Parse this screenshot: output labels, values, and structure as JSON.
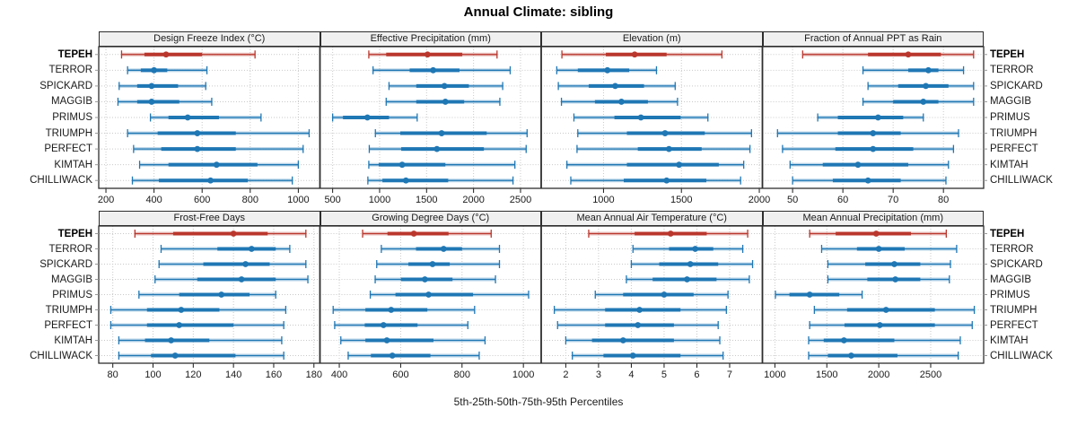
{
  "title": "Annual Climate: sibling",
  "caption": "5th-25th-50th-75th-95th Percentiles",
  "colors": {
    "highlight": "#ba372d",
    "normal": "#1f77b4",
    "grid": "#c9c9c9",
    "border": "#2e2e2e",
    "strip_bg": "#f0f0f0",
    "axis_text": "#1a1a1a",
    "outer_tick": "#999999"
  },
  "chart_data": {
    "type": "dot-interval",
    "percentile_labels": [
      "5th",
      "25th",
      "50th",
      "75th",
      "95th"
    ],
    "highlight_site": "TEPEH",
    "sites": [
      "TEPEH",
      "TERROR",
      "SPICKARD",
      "MAGGIB",
      "PRIMUS",
      "TRIUMPH",
      "PERFECT",
      "KIMTAH",
      "CHILLIWACK"
    ],
    "panels": [
      {
        "title": "Design Freeze Index (°C)",
        "xlim": [
          170,
          1090
        ],
        "ticks": [
          200,
          400,
          600,
          800,
          1000
        ],
        "series": [
          [
            265,
            360,
            450,
            600,
            820
          ],
          [
            290,
            345,
            400,
            455,
            620
          ],
          [
            255,
            330,
            390,
            500,
            615
          ],
          [
            250,
            330,
            390,
            505,
            640
          ],
          [
            385,
            460,
            540,
            670,
            845
          ],
          [
            290,
            415,
            580,
            740,
            1045
          ],
          [
            315,
            430,
            580,
            740,
            1020
          ],
          [
            340,
            460,
            660,
            830,
            1000
          ],
          [
            310,
            420,
            635,
            790,
            975
          ]
        ]
      },
      {
        "title": "Effective Precipitation (mm)",
        "xlim": [
          365,
          2720
        ],
        "ticks": [
          500,
          1000,
          1500,
          2000,
          2500
        ],
        "series": [
          [
            885,
            1070,
            1510,
            1880,
            2250
          ],
          [
            930,
            1320,
            1570,
            1850,
            2390
          ],
          [
            1100,
            1390,
            1690,
            1950,
            2310
          ],
          [
            1070,
            1390,
            1700,
            1900,
            2280
          ],
          [
            500,
            610,
            870,
            1100,
            1400
          ],
          [
            955,
            1220,
            1660,
            2140,
            2570
          ],
          [
            890,
            1230,
            1610,
            2110,
            2560
          ],
          [
            885,
            990,
            1240,
            1700,
            2440
          ],
          [
            875,
            1030,
            1280,
            1730,
            2420
          ]
        ]
      },
      {
        "title": "Elevation (m)",
        "xlim": [
          600,
          2020
        ],
        "ticks": [
          1000,
          1500,
          2000
        ],
        "series": [
          [
            733,
            1015,
            1200,
            1405,
            1760
          ],
          [
            700,
            835,
            1025,
            1165,
            1340
          ],
          [
            710,
            905,
            1075,
            1260,
            1460
          ],
          [
            730,
            945,
            1115,
            1285,
            1475
          ],
          [
            810,
            1070,
            1240,
            1495,
            1670
          ],
          [
            835,
            1150,
            1395,
            1650,
            1950
          ],
          [
            830,
            1220,
            1420,
            1630,
            1940
          ],
          [
            765,
            1150,
            1485,
            1740,
            1900
          ],
          [
            790,
            1130,
            1405,
            1660,
            1880
          ]
        ]
      },
      {
        "title": "Fraction of Annual PPT as Rain",
        "xlim": [
          44,
          88
        ],
        "ticks": [
          50,
          60,
          70,
          80
        ],
        "series": [
          [
            52,
            65,
            73,
            79.5,
            86
          ],
          [
            64,
            73,
            77,
            79,
            84
          ],
          [
            65,
            71,
            76.5,
            81,
            86
          ],
          [
            64,
            70,
            76,
            79,
            86
          ],
          [
            55,
            59,
            67,
            72,
            76
          ],
          [
            47,
            59,
            66,
            71.5,
            83
          ],
          [
            48,
            58.5,
            66,
            74,
            82
          ],
          [
            49.5,
            56,
            63,
            73,
            81
          ],
          [
            50,
            58,
            65,
            71.5,
            80.5
          ]
        ]
      },
      {
        "title": "Frost-Free Days",
        "xlim": [
          73,
          183
        ],
        "ticks": [
          80,
          100,
          120,
          140,
          160,
          180
        ],
        "series": [
          [
            91,
            110,
            140,
            157,
            176
          ],
          [
            104,
            132,
            149,
            161,
            168
          ],
          [
            103,
            125,
            146,
            158,
            176
          ],
          [
            101,
            122,
            144,
            161,
            177
          ],
          [
            93,
            113,
            134,
            148,
            161
          ],
          [
            79,
            97,
            114,
            133,
            166
          ],
          [
            79,
            97,
            113,
            140,
            165
          ],
          [
            83,
            96,
            109,
            128,
            164
          ],
          [
            83,
            99,
            111,
            141,
            165
          ]
        ]
      },
      {
        "title": "Growing Degree Days (°C)",
        "xlim": [
          337,
          1058
        ],
        "ticks": [
          400,
          600,
          800,
          1000
        ],
        "series": [
          [
            476,
            557,
            643,
            756,
            895
          ],
          [
            537,
            650,
            740,
            800,
            922
          ],
          [
            522,
            625,
            704,
            760,
            922
          ],
          [
            517,
            601,
            679,
            769,
            909
          ],
          [
            501,
            583,
            691,
            836,
            1017
          ],
          [
            380,
            485,
            569,
            687,
            841
          ],
          [
            385,
            483,
            544,
            655,
            819
          ],
          [
            405,
            485,
            555,
            707,
            875
          ],
          [
            429,
            503,
            573,
            697,
            856
          ]
        ]
      },
      {
        "title": "Mean Annual Air Temperature (°C)",
        "xlim": [
          1.25,
          8.0
        ],
        "ticks": [
          2,
          3,
          4,
          5,
          6,
          7
        ],
        "series": [
          [
            2.7,
            4.1,
            5.2,
            6.3,
            7.55
          ],
          [
            4.05,
            5.15,
            5.95,
            6.5,
            7.4
          ],
          [
            4.0,
            4.85,
            5.8,
            6.65,
            7.7
          ],
          [
            3.85,
            4.65,
            5.7,
            6.6,
            7.6
          ],
          [
            2.9,
            3.75,
            5.0,
            5.9,
            6.95
          ],
          [
            1.65,
            3.2,
            4.25,
            5.5,
            6.9
          ],
          [
            1.75,
            3.2,
            4.2,
            5.3,
            6.65
          ],
          [
            2.0,
            2.8,
            3.75,
            5.3,
            6.7
          ],
          [
            2.2,
            3.15,
            4.05,
            5.5,
            6.8
          ]
        ]
      },
      {
        "title": "Mean Annual Precipitation (mm)",
        "xlim": [
          880,
          3010
        ],
        "ticks": [
          1000,
          1500,
          2000,
          2500
        ],
        "series": [
          [
            1335,
            1585,
            1975,
            2310,
            2650
          ],
          [
            1450,
            1790,
            2000,
            2250,
            2750
          ],
          [
            1510,
            1870,
            2150,
            2400,
            2690
          ],
          [
            1510,
            1890,
            2160,
            2400,
            2680
          ],
          [
            1005,
            1140,
            1335,
            1620,
            1840
          ],
          [
            1380,
            1695,
            2070,
            2540,
            2920
          ],
          [
            1335,
            1670,
            2010,
            2540,
            2900
          ],
          [
            1325,
            1470,
            1665,
            2150,
            2785
          ],
          [
            1325,
            1510,
            1735,
            2180,
            2765
          ]
        ]
      }
    ]
  }
}
